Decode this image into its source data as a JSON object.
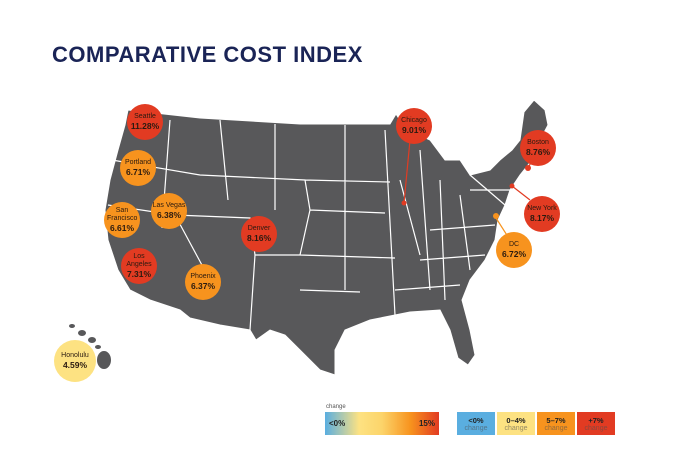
{
  "title": "COMPARATIVE COST INDEX",
  "colors": {
    "map": "#58585a",
    "red": "#e23b22",
    "orange": "#f7931e",
    "yellow": "#fde282",
    "blue": "#5aaee0"
  },
  "cities": [
    {
      "name": "Seattle",
      "value": "11.28%",
      "category": "+7%"
    },
    {
      "name": "Portland",
      "value": "6.71%",
      "category": "5-7%"
    },
    {
      "name": "San Francisco",
      "value": "6.61%",
      "category": "5-7%"
    },
    {
      "name": "Las Vegas",
      "value": "6.38%",
      "category": "5-7%"
    },
    {
      "name": "Los Angeles",
      "value": "7.31%",
      "category": "+7%"
    },
    {
      "name": "Phoenix",
      "value": "6.37%",
      "category": "5-7%"
    },
    {
      "name": "Denver",
      "value": "8.16%",
      "category": "+7%"
    },
    {
      "name": "Chicago",
      "value": "9.01%",
      "category": "+7%"
    },
    {
      "name": "Boston",
      "value": "8.76%",
      "category": "+7%"
    },
    {
      "name": "New York",
      "value": "8.17%",
      "category": "+7%"
    },
    {
      "name": "DC",
      "value": "6.72%",
      "category": "5-7%"
    },
    {
      "name": "Honolulu",
      "value": "4.59%",
      "category": "0-4%"
    }
  ],
  "legend": {
    "label": "change",
    "gradient_min": "<0%",
    "gradient_max": "15%",
    "keys": [
      {
        "range": "<0%",
        "sub": "change"
      },
      {
        "range": "0–4%",
        "sub": "change"
      },
      {
        "range": "5–7%",
        "sub": "change"
      },
      {
        "range": "+7%",
        "sub": "change"
      }
    ]
  }
}
